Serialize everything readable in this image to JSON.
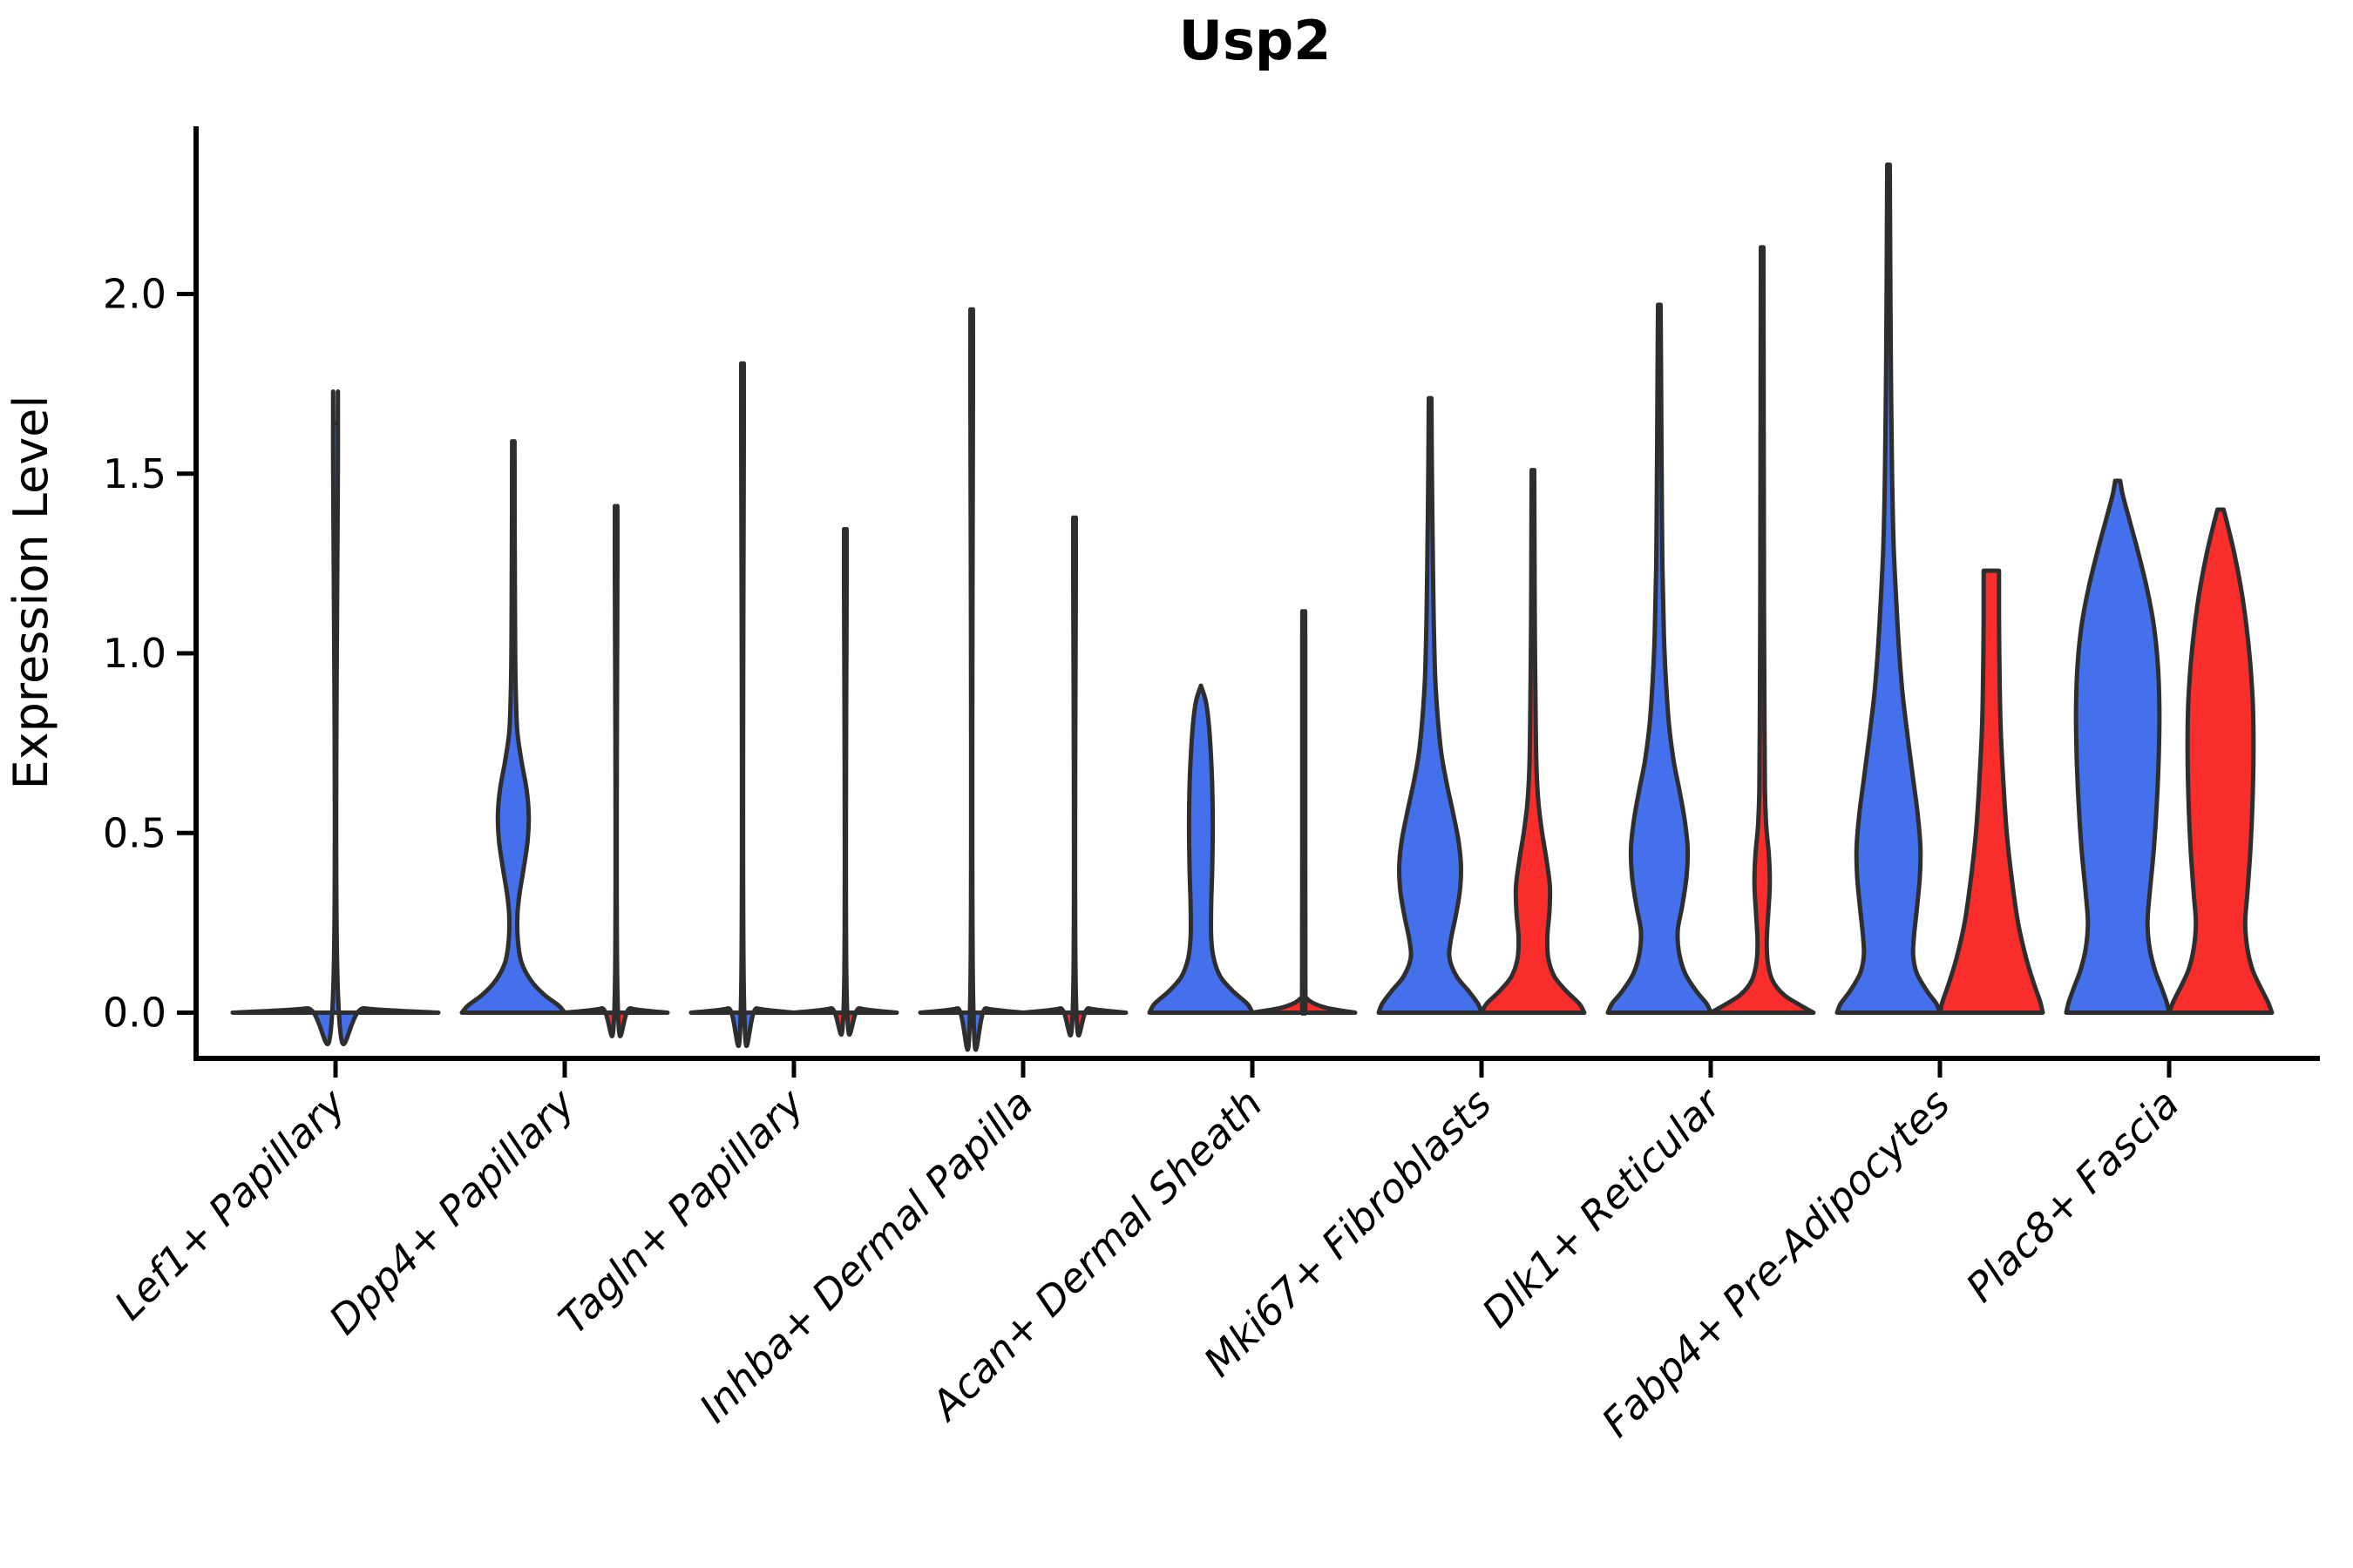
{
  "accent_colors": {
    "blue_fill": "#4471EB",
    "red_fill": "#FA2D2D",
    "violin_stroke": "#2E2E2E",
    "axis_color": "#000000",
    "text_color": "#000000"
  },
  "chart_data": {
    "type": "violin",
    "title": "Usp2",
    "ylabel": "Expression Level",
    "xlabel": "",
    "ylim": [
      -0.13,
      2.47
    ],
    "yticks": [
      0.0,
      0.5,
      1.0,
      1.5,
      2.0
    ],
    "ytick_labels": [
      "0.0",
      "0.5",
      "1.0",
      "1.5",
      "2.0"
    ],
    "grid": "off",
    "legend_position": "none",
    "x_tick_label_rotation_deg": 45,
    "categories": [
      "Lef1+ Papillary",
      "Dpp4+ Papillary",
      "Tagln+ Papillary",
      "Inhba+ Dermal Papilla",
      "Acan+ Dermal Sheath",
      "Mki67+ Fibroblasts",
      "Dlk1+ Reticular",
      "Fabp4+ Pre-Adipocytes",
      "Plac8+ Fascia"
    ],
    "groups": [
      {
        "name": "group-blue",
        "color_key": "blue_fill"
      },
      {
        "name": "group-red",
        "color_key": "red_fill"
      }
    ],
    "violins": [
      {
        "category_index": 0,
        "category": "Lef1+ Papillary",
        "color": "blue",
        "side": "center",
        "max_expression": 1.64,
        "shape": "collapsed-spike",
        "profile": [
          [
            0,
            1.0
          ],
          [
            0.012,
            0.28
          ],
          [
            0.035,
            0.026
          ],
          [
            1.6,
            0.024
          ],
          [
            1.64,
            0.022
          ]
        ]
      },
      {
        "category_index": 1,
        "category": "Dpp4+ Papillary",
        "color": "blue",
        "side": "left",
        "max_expression": 1.59,
        "shape": "base-bulge-spike",
        "profile": [
          [
            0,
            1.0
          ],
          [
            0.02,
            0.88
          ],
          [
            0.05,
            0.6
          ],
          [
            0.09,
            0.34
          ],
          [
            0.14,
            0.16
          ],
          [
            0.2,
            0.09
          ],
          [
            0.27,
            0.08
          ],
          [
            0.33,
            0.12
          ],
          [
            0.4,
            0.2
          ],
          [
            0.48,
            0.28
          ],
          [
            0.55,
            0.3
          ],
          [
            0.62,
            0.26
          ],
          [
            0.7,
            0.16
          ],
          [
            0.78,
            0.08
          ],
          [
            0.88,
            0.05
          ],
          [
            1.0,
            0.038
          ],
          [
            1.2,
            0.03
          ],
          [
            1.4,
            0.026
          ],
          [
            1.59,
            0.024
          ]
        ]
      },
      {
        "category_index": 1,
        "category": "Dpp4+ Papillary",
        "color": "red",
        "side": "right",
        "max_expression": 1.35,
        "shape": "collapsed-spike",
        "profile": [
          [
            0,
            1.0
          ],
          [
            0.012,
            0.28
          ],
          [
            0.035,
            0.028
          ],
          [
            1.3,
            0.026
          ],
          [
            1.35,
            0.024
          ]
        ]
      },
      {
        "category_index": 2,
        "category": "Tagln+ Papillary",
        "color": "blue",
        "side": "left",
        "max_expression": 1.72,
        "shape": "collapsed-spike",
        "profile": [
          [
            0,
            1.0
          ],
          [
            0.012,
            0.28
          ],
          [
            0.035,
            0.028
          ],
          [
            1.67,
            0.026
          ],
          [
            1.72,
            0.024
          ]
        ]
      },
      {
        "category_index": 2,
        "category": "Tagln+ Papillary",
        "color": "red",
        "side": "right",
        "max_expression": 1.29,
        "shape": "collapsed-spike",
        "profile": [
          [
            0,
            1.0
          ],
          [
            0.012,
            0.28
          ],
          [
            0.035,
            0.028
          ],
          [
            1.24,
            0.026
          ],
          [
            1.29,
            0.024
          ]
        ]
      },
      {
        "category_index": 3,
        "category": "Inhba+ Dermal Papilla",
        "color": "blue",
        "side": "left",
        "max_expression": 1.86,
        "shape": "collapsed-spike",
        "profile": [
          [
            0,
            1.0
          ],
          [
            0.012,
            0.28
          ],
          [
            0.035,
            0.028
          ],
          [
            1.81,
            0.026
          ],
          [
            1.86,
            0.024
          ]
        ]
      },
      {
        "category_index": 3,
        "category": "Inhba+ Dermal Papilla",
        "color": "red",
        "side": "right",
        "max_expression": 1.32,
        "shape": "collapsed-spike",
        "profile": [
          [
            0,
            1.0
          ],
          [
            0.012,
            0.28
          ],
          [
            0.035,
            0.028
          ],
          [
            1.27,
            0.026
          ],
          [
            1.32,
            0.024
          ]
        ]
      },
      {
        "category_index": 4,
        "category": "Acan+ Dermal Sheath",
        "color": "blue",
        "side": "left",
        "max_expression": 0.91,
        "shape": "narrow-column",
        "profile": [
          [
            0,
            1.0
          ],
          [
            0.025,
            0.9
          ],
          [
            0.06,
            0.62
          ],
          [
            0.1,
            0.38
          ],
          [
            0.15,
            0.25
          ],
          [
            0.21,
            0.2
          ],
          [
            0.3,
            0.2
          ],
          [
            0.4,
            0.22
          ],
          [
            0.52,
            0.23
          ],
          [
            0.63,
            0.22
          ],
          [
            0.73,
            0.19
          ],
          [
            0.81,
            0.15
          ],
          [
            0.87,
            0.09
          ],
          [
            0.91,
            0.0
          ]
        ]
      },
      {
        "category_index": 4,
        "category": "Acan+ Dermal Sheath",
        "color": "red",
        "side": "right",
        "max_expression": 1.08,
        "shape": "collapsed-spike",
        "profile": [
          [
            0,
            1.0
          ],
          [
            0.015,
            0.4
          ],
          [
            0.04,
            0.06
          ],
          [
            0.08,
            0.032
          ],
          [
            1.03,
            0.028
          ],
          [
            1.08,
            0.026
          ]
        ]
      },
      {
        "category_index": 5,
        "category": "Mki67+ Fibroblasts",
        "color": "blue",
        "side": "left",
        "max_expression": 1.71,
        "shape": "base-bulge-spike",
        "profile": [
          [
            0,
            1.0
          ],
          [
            0.025,
            0.93
          ],
          [
            0.06,
            0.75
          ],
          [
            0.1,
            0.52
          ],
          [
            0.15,
            0.38
          ],
          [
            0.2,
            0.4
          ],
          [
            0.27,
            0.5
          ],
          [
            0.34,
            0.58
          ],
          [
            0.41,
            0.6
          ],
          [
            0.48,
            0.55
          ],
          [
            0.56,
            0.44
          ],
          [
            0.64,
            0.32
          ],
          [
            0.72,
            0.22
          ],
          [
            0.82,
            0.15
          ],
          [
            0.93,
            0.1
          ],
          [
            1.1,
            0.07
          ],
          [
            1.3,
            0.05
          ],
          [
            1.5,
            0.035
          ],
          [
            1.71,
            0.025
          ]
        ]
      },
      {
        "category_index": 5,
        "category": "Mki67+ Fibroblasts",
        "color": "red",
        "side": "right",
        "max_expression": 1.51,
        "shape": "base-bulge-spike",
        "profile": [
          [
            0,
            1.0
          ],
          [
            0.025,
            0.9
          ],
          [
            0.06,
            0.65
          ],
          [
            0.1,
            0.42
          ],
          [
            0.15,
            0.3
          ],
          [
            0.21,
            0.28
          ],
          [
            0.28,
            0.32
          ],
          [
            0.35,
            0.33
          ],
          [
            0.42,
            0.27
          ],
          [
            0.5,
            0.18
          ],
          [
            0.58,
            0.11
          ],
          [
            0.68,
            0.07
          ],
          [
            0.85,
            0.05
          ],
          [
            1.1,
            0.035
          ],
          [
            1.3,
            0.03
          ],
          [
            1.51,
            0.025
          ]
        ]
      },
      {
        "category_index": 6,
        "category": "Dlk1+ Reticular",
        "color": "blue",
        "side": "left",
        "max_expression": 1.97,
        "shape": "base-bulge-spike",
        "profile": [
          [
            0,
            1.0
          ],
          [
            0.025,
            0.92
          ],
          [
            0.06,
            0.72
          ],
          [
            0.11,
            0.5
          ],
          [
            0.17,
            0.38
          ],
          [
            0.23,
            0.36
          ],
          [
            0.3,
            0.45
          ],
          [
            0.38,
            0.53
          ],
          [
            0.46,
            0.55
          ],
          [
            0.54,
            0.49
          ],
          [
            0.62,
            0.39
          ],
          [
            0.7,
            0.28
          ],
          [
            0.8,
            0.19
          ],
          [
            0.92,
            0.13
          ],
          [
            1.05,
            0.09
          ],
          [
            1.25,
            0.06
          ],
          [
            1.5,
            0.045
          ],
          [
            1.75,
            0.035
          ],
          [
            1.97,
            0.025
          ]
        ]
      },
      {
        "category_index": 6,
        "category": "Dlk1+ Reticular",
        "color": "red",
        "side": "right",
        "max_expression": 2.13,
        "shape": "slim-bulge-spike",
        "profile": [
          [
            0,
            1.0
          ],
          [
            0.02,
            0.75
          ],
          [
            0.05,
            0.42
          ],
          [
            0.09,
            0.2
          ],
          [
            0.14,
            0.11
          ],
          [
            0.2,
            0.09
          ],
          [
            0.28,
            0.12
          ],
          [
            0.36,
            0.15
          ],
          [
            0.44,
            0.13
          ],
          [
            0.52,
            0.08
          ],
          [
            0.62,
            0.055
          ],
          [
            0.8,
            0.045
          ],
          [
            1.1,
            0.038
          ],
          [
            1.5,
            0.032
          ],
          [
            1.8,
            0.028
          ],
          [
            2.13,
            0.025
          ]
        ]
      },
      {
        "category_index": 7,
        "category": "Fabp4+ Pre-Adipocytes",
        "color": "blue",
        "side": "left",
        "max_expression": 2.36,
        "shape": "base-bulge-spike",
        "profile": [
          [
            0,
            1.0
          ],
          [
            0.025,
            0.93
          ],
          [
            0.06,
            0.75
          ],
          [
            0.11,
            0.55
          ],
          [
            0.16,
            0.48
          ],
          [
            0.22,
            0.5
          ],
          [
            0.3,
            0.56
          ],
          [
            0.38,
            0.61
          ],
          [
            0.46,
            0.62
          ],
          [
            0.55,
            0.57
          ],
          [
            0.65,
            0.48
          ],
          [
            0.76,
            0.38
          ],
          [
            0.88,
            0.28
          ],
          [
            1.0,
            0.21
          ],
          [
            1.15,
            0.15
          ],
          [
            1.3,
            0.1
          ],
          [
            1.5,
            0.07
          ],
          [
            1.75,
            0.05
          ],
          [
            2.0,
            0.038
          ],
          [
            2.2,
            0.03
          ],
          [
            2.36,
            0.025
          ]
        ]
      },
      {
        "category_index": 7,
        "category": "Fabp4+ Pre-Adipocytes",
        "color": "red",
        "side": "right",
        "max_expression": 1.23,
        "shape": "flat-top-cone",
        "profile": [
          [
            0,
            1.0
          ],
          [
            0.03,
            0.95
          ],
          [
            0.08,
            0.83
          ],
          [
            0.15,
            0.68
          ],
          [
            0.25,
            0.52
          ],
          [
            0.37,
            0.4
          ],
          [
            0.5,
            0.3
          ],
          [
            0.65,
            0.23
          ],
          [
            0.8,
            0.18
          ],
          [
            0.95,
            0.16
          ],
          [
            1.1,
            0.15
          ],
          [
            1.23,
            0.15
          ]
        ]
      },
      {
        "category_index": 8,
        "category": "Plac8+ Fascia",
        "color": "blue",
        "side": "left",
        "max_expression": 1.48,
        "shape": "wide-column",
        "profile": [
          [
            0,
            1.0
          ],
          [
            0.03,
            0.95
          ],
          [
            0.07,
            0.85
          ],
          [
            0.12,
            0.72
          ],
          [
            0.18,
            0.62
          ],
          [
            0.25,
            0.58
          ],
          [
            0.33,
            0.62
          ],
          [
            0.45,
            0.7
          ],
          [
            0.58,
            0.76
          ],
          [
            0.72,
            0.8
          ],
          [
            0.85,
            0.81
          ],
          [
            0.97,
            0.78
          ],
          [
            1.08,
            0.7
          ],
          [
            1.18,
            0.57
          ],
          [
            1.28,
            0.4
          ],
          [
            1.37,
            0.23
          ],
          [
            1.44,
            0.1
          ],
          [
            1.48,
            0.05
          ]
        ]
      },
      {
        "category_index": 8,
        "category": "Plac8+ Fascia",
        "color": "red",
        "side": "right",
        "max_expression": 1.4,
        "shape": "wide-column",
        "profile": [
          [
            0,
            1.0
          ],
          [
            0.03,
            0.92
          ],
          [
            0.07,
            0.78
          ],
          [
            0.12,
            0.62
          ],
          [
            0.18,
            0.52
          ],
          [
            0.25,
            0.48
          ],
          [
            0.33,
            0.52
          ],
          [
            0.45,
            0.58
          ],
          [
            0.58,
            0.62
          ],
          [
            0.72,
            0.64
          ],
          [
            0.85,
            0.63
          ],
          [
            0.97,
            0.58
          ],
          [
            1.08,
            0.5
          ],
          [
            1.18,
            0.4
          ],
          [
            1.27,
            0.28
          ],
          [
            1.35,
            0.15
          ],
          [
            1.4,
            0.06
          ]
        ]
      }
    ]
  }
}
